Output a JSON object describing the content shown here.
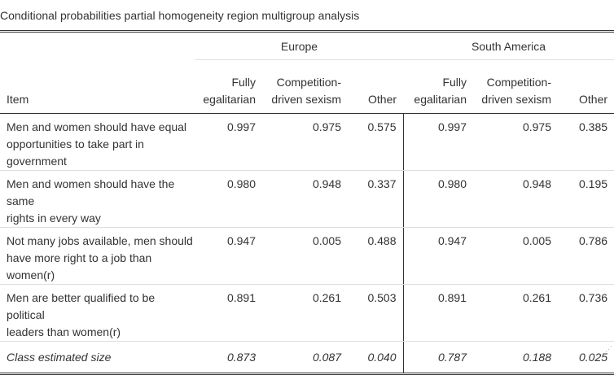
{
  "caption": "Conditional probabilities partial homogeneity region multigroup analysis",
  "groups": {
    "europe": "Europe",
    "south_america": "South America"
  },
  "columns": {
    "item": "Item",
    "fully_egalitarian_1": "Fully",
    "fully_egalitarian_2": "egalitarian",
    "competition_1": "Competition-",
    "competition_2": "driven sexism",
    "other": "Other"
  },
  "rows": [
    {
      "item_line1": "Men and women should have equal",
      "item_line2": "opportunities to take part in government",
      "eu_fe": "0.997",
      "eu_cds": "0.975",
      "eu_other": "0.575",
      "sa_fe": "0.997",
      "sa_cds": "0.975",
      "sa_other": "0.385"
    },
    {
      "item_line1": "Men and women should have the same",
      "item_line2": "rights in every way",
      "eu_fe": "0.980",
      "eu_cds": "0.948",
      "eu_other": "0.337",
      "sa_fe": "0.980",
      "sa_cds": "0.948",
      "sa_other": "0.195"
    },
    {
      "item_line1": "Not many jobs available, men should",
      "item_line2": "have more right to a job than women(r)",
      "eu_fe": "0.947",
      "eu_cds": "0.005",
      "eu_other": "0.488",
      "sa_fe": "0.947",
      "sa_cds": "0.005",
      "sa_other": "0.786"
    },
    {
      "item_line1": "Men are better qualified to be political",
      "item_line2": "leaders than women(r)",
      "eu_fe": "0.891",
      "eu_cds": "0.261",
      "eu_other": "0.503",
      "sa_fe": "0.891",
      "sa_cds": "0.261",
      "sa_other": "0.736"
    }
  ],
  "total": {
    "label": "Class estimated size",
    "eu_fe": "0.873",
    "eu_cds": "0.087",
    "eu_other": "0.040",
    "sa_fe": "0.787",
    "sa_cds": "0.188",
    "sa_other": "0.025"
  }
}
